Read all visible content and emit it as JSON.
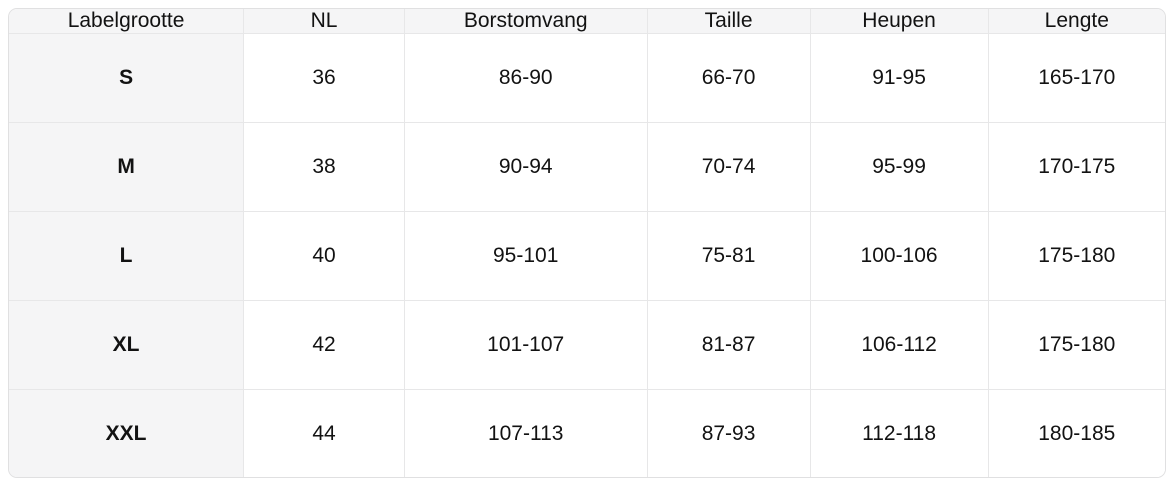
{
  "size_chart": {
    "columns": [
      {
        "id": "labelgrootte",
        "label": "Labelgrootte"
      },
      {
        "id": "nl",
        "label": "NL"
      },
      {
        "id": "borstomvang",
        "label": "Borstomvang"
      },
      {
        "id": "taille",
        "label": "Taille"
      },
      {
        "id": "heupen",
        "label": "Heupen"
      },
      {
        "id": "lengte",
        "label": "Lengte"
      }
    ],
    "column_widths_pct": [
      20.3,
      13.9,
      21.0,
      14.1,
      15.4,
      15.3
    ],
    "rows": [
      {
        "label": "S",
        "values": [
          "36",
          "86-90",
          "66-70",
          "91-95",
          "165-170"
        ]
      },
      {
        "label": "M",
        "values": [
          "38",
          "90-94",
          "70-74",
          "95-99",
          "170-175"
        ]
      },
      {
        "label": "L",
        "values": [
          "40",
          "95-101",
          "75-81",
          "100-106",
          "175-180"
        ]
      },
      {
        "label": "XL",
        "values": [
          "42",
          "101-107",
          "81-87",
          "106-112",
          "175-180"
        ]
      },
      {
        "label": "XXL",
        "values": [
          "44",
          "107-113",
          "87-93",
          "112-118",
          "180-185"
        ]
      }
    ],
    "colors": {
      "header_background": "#f5f5f6",
      "label_column_background": "#f5f5f6",
      "cell_background": "#ffffff",
      "grid_line": "#e7e7e8",
      "outer_border": "#e0e0e1",
      "text": "#121212"
    }
  }
}
